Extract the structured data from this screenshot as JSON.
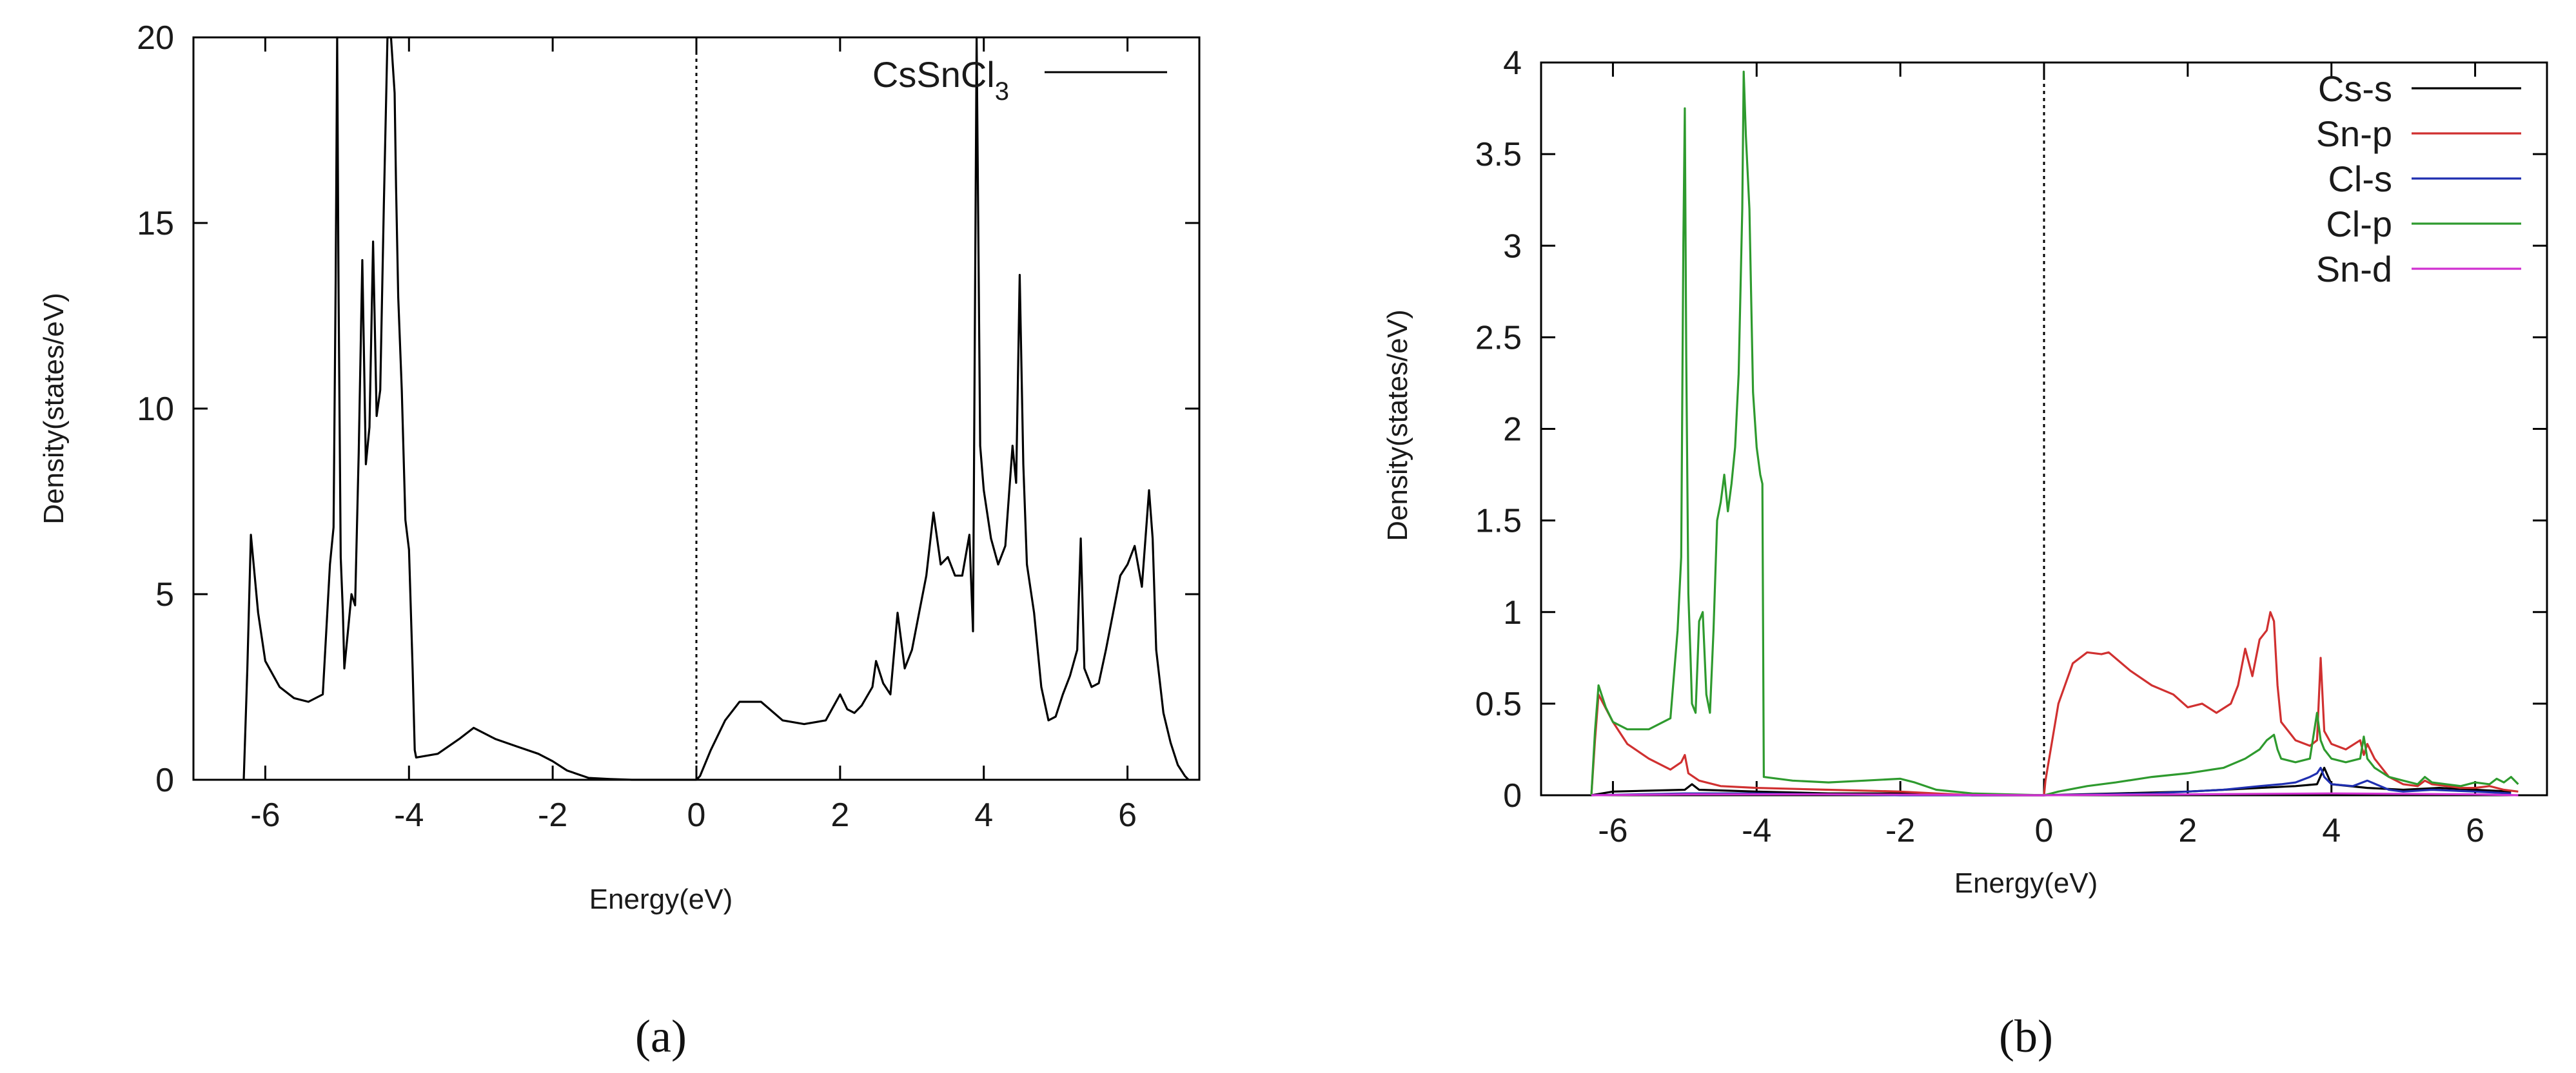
{
  "panels": [
    {
      "label": "(a)"
    },
    {
      "label": "(b)"
    }
  ],
  "chart_data": [
    {
      "type": "line",
      "title": "",
      "xlabel": "Energy(eV)",
      "ylabel": "Density(states/eV)",
      "xlim": [
        -7,
        7
      ],
      "ylim": [
        0,
        20
      ],
      "xticks": [
        -6,
        -4,
        -2,
        0,
        2,
        4,
        6
      ],
      "yticks": [
        0,
        5,
        10,
        15,
        20
      ],
      "grid": false,
      "legend_position": "top-right",
      "fermi_level": 0,
      "series": [
        {
          "name": "CsSnCl3",
          "legend_text": "CsSnCl",
          "legend_sub": "3",
          "color": "#000000",
          "x": [
            -6.3,
            -6.25,
            -6.2,
            -6.1,
            -6.0,
            -5.8,
            -5.6,
            -5.4,
            -5.2,
            -5.1,
            -5.05,
            -5.02,
            -5.0,
            -4.98,
            -4.95,
            -4.92,
            -4.9,
            -4.85,
            -4.8,
            -4.75,
            -4.7,
            -4.65,
            -4.6,
            -4.55,
            -4.5,
            -4.45,
            -4.4,
            -4.35,
            -4.3,
            -4.25,
            -4.2,
            -4.18,
            -4.15,
            -4.1,
            -4.05,
            -4.0,
            -3.95,
            -3.92,
            -3.9,
            -3.6,
            -3.3,
            -3.1,
            -2.8,
            -2.5,
            -2.2,
            -2.0,
            -1.8,
            -1.5,
            -1.2,
            -0.9,
            -0.5,
            -0.2,
            0.0,
            0.05,
            0.2,
            0.4,
            0.6,
            0.9,
            1.2,
            1.5,
            1.8,
            2.0,
            2.1,
            2.2,
            2.3,
            2.45,
            2.5,
            2.6,
            2.7,
            2.8,
            2.9,
            3.0,
            3.1,
            3.2,
            3.3,
            3.4,
            3.5,
            3.6,
            3.7,
            3.8,
            3.85,
            3.9,
            3.95,
            4.0,
            4.1,
            4.2,
            4.3,
            4.4,
            4.45,
            4.5,
            4.55,
            4.6,
            4.7,
            4.8,
            4.9,
            5.0,
            5.1,
            5.2,
            5.3,
            5.35,
            5.4,
            5.5,
            5.6,
            5.7,
            5.8,
            5.9,
            6.0,
            6.1,
            6.2,
            6.3,
            6.35,
            6.4,
            6.5,
            6.6,
            6.7,
            6.8,
            6.85
          ],
          "y": [
            0,
            3.0,
            6.6,
            4.5,
            3.2,
            2.5,
            2.2,
            2.1,
            2.3,
            5.8,
            6.8,
            13.5,
            20,
            13.0,
            6.0,
            4.5,
            3.0,
            4.0,
            5.0,
            4.7,
            8.8,
            14.0,
            8.5,
            9.5,
            14.5,
            9.8,
            10.5,
            15.5,
            20,
            20,
            18.5,
            16.0,
            13.0,
            10.5,
            7.0,
            6.2,
            3.0,
            0.8,
            0.6,
            0.7,
            1.1,
            1.4,
            1.1,
            0.9,
            0.7,
            0.5,
            0.25,
            0.05,
            0.02,
            0,
            0,
            0,
            0,
            0.1,
            0.8,
            1.6,
            2.1,
            2.1,
            1.6,
            1.5,
            1.6,
            2.3,
            1.9,
            1.8,
            2.0,
            2.5,
            3.2,
            2.6,
            2.3,
            4.5,
            3.0,
            3.5,
            4.5,
            5.5,
            7.2,
            5.8,
            6.0,
            5.5,
            5.5,
            6.6,
            4.0,
            20,
            9.0,
            7.8,
            6.5,
            5.8,
            6.3,
            9.0,
            8.0,
            13.6,
            8.5,
            5.8,
            4.5,
            2.5,
            1.6,
            1.7,
            2.3,
            2.8,
            3.5,
            6.5,
            3.0,
            2.5,
            2.6,
            3.5,
            4.5,
            5.5,
            5.8,
            6.3,
            5.2,
            7.8,
            6.5,
            3.5,
            1.8,
            1.0,
            0.4,
            0.1,
            0
          ]
        }
      ]
    },
    {
      "type": "line",
      "title": "",
      "xlabel": "Energy(eV)",
      "ylabel": "Density(states/eV)",
      "xlim": [
        -7,
        7
      ],
      "ylim": [
        0,
        4
      ],
      "xticks": [
        -6,
        -4,
        -2,
        0,
        2,
        4,
        6
      ],
      "yticks": [
        0,
        0.5,
        1,
        1.5,
        2,
        2.5,
        3,
        3.5,
        4
      ],
      "grid": false,
      "legend_position": "top-right",
      "fermi_level": 0,
      "series": [
        {
          "name": "Cs-s",
          "color": "#000000",
          "x": [
            -6.3,
            -6.0,
            -5.0,
            -4.9,
            -4.8,
            -4.0,
            -3.0,
            -2.0,
            -1.0,
            0.0,
            1.0,
            2.0,
            2.5,
            3.0,
            3.5,
            3.8,
            3.9,
            4.0,
            4.5,
            5.0,
            5.5,
            6.0,
            6.5
          ],
          "y": [
            0,
            0.02,
            0.03,
            0.06,
            0.03,
            0.02,
            0.01,
            0.01,
            0,
            0,
            0.01,
            0.02,
            0.03,
            0.04,
            0.05,
            0.06,
            0.15,
            0.06,
            0.04,
            0.03,
            0.04,
            0.03,
            0.02
          ]
        },
        {
          "name": "Sn-p",
          "color": "#d03030",
          "x": [
            -6.3,
            -6.25,
            -6.2,
            -6.0,
            -5.8,
            -5.5,
            -5.2,
            -5.05,
            -5.0,
            -4.95,
            -4.8,
            -4.5,
            -4.0,
            -3.0,
            -2.0,
            -1.5,
            -1.0,
            0.0,
            0.02,
            0.2,
            0.4,
            0.6,
            0.8,
            0.9,
            1.2,
            1.5,
            1.8,
            2.0,
            2.2,
            2.4,
            2.6,
            2.7,
            2.8,
            2.9,
            3.0,
            3.1,
            3.15,
            3.2,
            3.25,
            3.3,
            3.5,
            3.7,
            3.8,
            3.85,
            3.9,
            4.0,
            4.2,
            4.4,
            4.45,
            4.5,
            4.6,
            4.8,
            5.0,
            5.2,
            5.3,
            5.4,
            5.6,
            5.8,
            6.0,
            6.2,
            6.4,
            6.6
          ],
          "y": [
            0,
            0.3,
            0.55,
            0.4,
            0.28,
            0.2,
            0.14,
            0.18,
            0.22,
            0.12,
            0.08,
            0.05,
            0.04,
            0.03,
            0.02,
            0.01,
            0,
            0,
            0.08,
            0.5,
            0.72,
            0.78,
            0.77,
            0.78,
            0.68,
            0.6,
            0.55,
            0.48,
            0.5,
            0.45,
            0.5,
            0.6,
            0.8,
            0.65,
            0.85,
            0.9,
            1.0,
            0.95,
            0.6,
            0.4,
            0.3,
            0.27,
            0.3,
            0.75,
            0.35,
            0.28,
            0.25,
            0.3,
            0.22,
            0.28,
            0.2,
            0.1,
            0.06,
            0.05,
            0.08,
            0.06,
            0.05,
            0.04,
            0.04,
            0.05,
            0.03,
            0.02
          ]
        },
        {
          "name": "Cl-s",
          "color": "#1f2fb0",
          "x": [
            -6.3,
            -5.0,
            -4.0,
            -2.0,
            0.0,
            1.5,
            2.0,
            2.5,
            3.0,
            3.3,
            3.5,
            3.7,
            3.8,
            3.85,
            3.9,
            4.0,
            4.3,
            4.5,
            4.8,
            5.0,
            5.4,
            6.0,
            6.5
          ],
          "y": [
            0,
            0.01,
            0.01,
            0,
            0,
            0.01,
            0.02,
            0.03,
            0.05,
            0.06,
            0.07,
            0.1,
            0.12,
            0.15,
            0.1,
            0.06,
            0.05,
            0.08,
            0.03,
            0.02,
            0.03,
            0.02,
            0.01
          ]
        },
        {
          "name": "Cl-p",
          "color": "#2e9a2e",
          "x": [
            -6.3,
            -6.25,
            -6.2,
            -6.1,
            -6.0,
            -5.8,
            -5.5,
            -5.2,
            -5.1,
            -5.05,
            -5.02,
            -5.0,
            -4.98,
            -4.95,
            -4.92,
            -4.9,
            -4.85,
            -4.8,
            -4.75,
            -4.7,
            -4.65,
            -4.6,
            -4.55,
            -4.5,
            -4.45,
            -4.4,
            -4.35,
            -4.3,
            -4.25,
            -4.2,
            -4.18,
            -4.15,
            -4.1,
            -4.05,
            -4.0,
            -3.95,
            -3.92,
            -3.9,
            -3.5,
            -3.0,
            -2.5,
            -2.0,
            -1.8,
            -1.5,
            -1.0,
            0.0,
            0.2,
            0.6,
            1.0,
            1.5,
            2.0,
            2.5,
            2.8,
            3.0,
            3.1,
            3.2,
            3.25,
            3.3,
            3.5,
            3.7,
            3.8,
            3.85,
            3.9,
            4.0,
            4.2,
            4.4,
            4.45,
            4.5,
            4.6,
            4.8,
            5.0,
            5.2,
            5.3,
            5.4,
            5.6,
            5.8,
            6.0,
            6.2,
            6.3,
            6.4,
            6.5,
            6.6
          ],
          "y": [
            0,
            0.35,
            0.6,
            0.48,
            0.4,
            0.36,
            0.36,
            0.42,
            0.9,
            1.3,
            3.0,
            3.75,
            2.4,
            1.1,
            0.75,
            0.5,
            0.45,
            0.95,
            1.0,
            0.55,
            0.45,
            0.9,
            1.5,
            1.6,
            1.75,
            1.55,
            1.7,
            1.9,
            2.3,
            3.2,
            3.95,
            3.6,
            3.2,
            2.2,
            1.9,
            1.75,
            1.7,
            0.1,
            0.08,
            0.07,
            0.08,
            0.09,
            0.07,
            0.03,
            0.01,
            0,
            0.02,
            0.05,
            0.07,
            0.1,
            0.12,
            0.15,
            0.2,
            0.25,
            0.3,
            0.33,
            0.25,
            0.2,
            0.18,
            0.2,
            0.45,
            0.3,
            0.25,
            0.2,
            0.18,
            0.2,
            0.32,
            0.2,
            0.15,
            0.1,
            0.08,
            0.06,
            0.1,
            0.07,
            0.06,
            0.05,
            0.07,
            0.06,
            0.09,
            0.07,
            0.1,
            0.06
          ]
        },
        {
          "name": "Sn-d",
          "color": "#d030d0",
          "x": [
            -6.3,
            -5.0,
            -3.0,
            0.0,
            2.0,
            4.0,
            6.0,
            6.6
          ],
          "y": [
            0,
            0.005,
            0.005,
            0,
            0.005,
            0.01,
            0.005,
            0
          ]
        }
      ]
    }
  ]
}
